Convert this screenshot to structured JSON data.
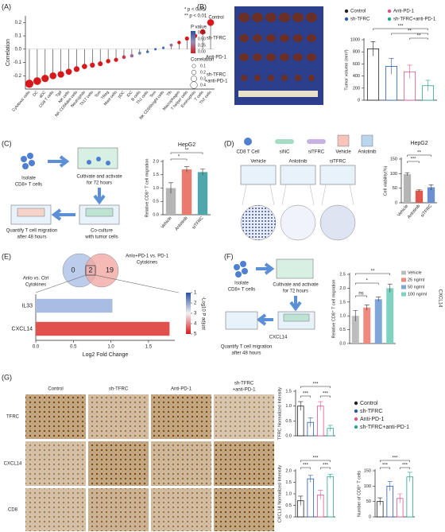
{
  "panel_labels": [
    "(A)",
    "(B)",
    "(C)",
    "(D)",
    "(E)",
    "(F)",
    "(G)"
  ],
  "chart_data": [
    {
      "type": "lollipop",
      "ylabel": "Correlation",
      "categories": [
        "Cytotoxic cells",
        "DC",
        "aDC",
        "CD8 T cells",
        "Tgd",
        "NK cells",
        "NK CD56dim cells",
        "Neutrophils",
        "Th17 cells",
        "Tcm",
        "TReg",
        "Mast cells",
        "pDC",
        "iDC",
        "B cells",
        "Th1 cells",
        "Tem",
        "NK CD56bright cells",
        "Tfh",
        "Macrophages",
        "T helper cells",
        "Eosinophils",
        "T cells",
        "Th2 cells"
      ],
      "values": [
        -0.26,
        -0.24,
        -0.22,
        -0.2,
        -0.19,
        -0.17,
        -0.15,
        -0.13,
        -0.12,
        -0.11,
        -0.09,
        -0.08,
        -0.06,
        -0.05,
        -0.03,
        -0.02,
        0.0,
        0.01,
        0.03,
        0.05,
        0.08,
        0.1,
        0.13,
        0.2
      ],
      "point_colors": [
        "#d7191c",
        "#d7191c",
        "#d7191c",
        "#d7191c",
        "#d7191c",
        "#d7191c",
        "#d7191c",
        "#d7191c",
        "#d7191c",
        "#d7191c",
        "#d7191c",
        "#d7191c",
        "#c43b55",
        "#9b6b9a",
        "#6f86b8",
        "#4e74b8",
        "#3f62a8",
        "#4e74b8",
        "#9b6b9a",
        "#d7191c",
        "#d7191c",
        "#d7191c",
        "#d7191c",
        "#d7191c"
      ],
      "ylim": [
        -0.3,
        0.25
      ],
      "yticks": [
        -0.2,
        -0.1,
        {
          "value": 0,
          "label": "0.0"
        },
        0.1,
        0.2
      ],
      "annotations": [
        "* p < 0.05",
        "** p < 0.01"
      ],
      "legend": {
        "pvalue_title": "P value",
        "pvalue_ticks": [
          "0.75",
          "0.50",
          "0.25",
          "0.00"
        ],
        "size_title": "Correlation",
        "sizes": [
          0.1,
          0.2,
          0.3,
          0.4
        ]
      }
    },
    {
      "type": "bar",
      "ylabel": "Tumor volume (mm³)",
      "categories": [
        "Control",
        "sh-TFRC",
        "Anti-PD-1",
        "sh-TFRC+anti-PD-1"
      ],
      "values": [
        850,
        560,
        470,
        240
      ],
      "errors": [
        120,
        130,
        110,
        90
      ],
      "colors": [
        "#222222",
        "#2a5caa",
        "#e0528a",
        "#2aa58a"
      ],
      "ylim": [
        0,
        1000
      ],
      "yticks": [
        0,
        200,
        400,
        600,
        800,
        1000
      ],
      "annotations": [
        "***",
        "**",
        "**"
      ]
    },
    {
      "type": "bar",
      "title": "HepG2",
      "ylabel": "Relative CD8⁺ T cell migration",
      "categories": [
        "Vehicle",
        "Anlotinib",
        "siTFRC"
      ],
      "values": [
        1.0,
        1.7,
        1.6
      ],
      "errors": [
        0.2,
        0.1,
        0.12
      ],
      "colors": [
        "#b5b5b5",
        "#ea7a6e",
        "#4fa7ab"
      ],
      "ylim": [
        0,
        2.0
      ],
      "yticks": [
        {
          "value": 0,
          "label": "0.0"
        },
        0.5,
        {
          "value": 1,
          "label": "1.0"
        },
        1.5,
        {
          "value": 2,
          "label": "2.0"
        }
      ],
      "annotations": [
        "*",
        "**"
      ]
    },
    {
      "type": "bar",
      "title": "HepG2",
      "ylabel": "Cell viability(%)",
      "categories": [
        "Vehicle",
        "Anlotinib",
        "siTFRC"
      ],
      "values": [
        98,
        42,
        53
      ],
      "errors": [
        5,
        3,
        9
      ],
      "colors": [
        "#b5b5b5",
        "#e0574c",
        "#6b8fd0"
      ],
      "ylim": [
        0,
        150
      ],
      "yticks": [
        0,
        50,
        100,
        150
      ],
      "annotations": [
        "***",
        "**"
      ]
    },
    {
      "type": "hbar",
      "categories": [
        "IL33",
        "CXCL14"
      ],
      "values": [
        1.02,
        1.78
      ],
      "colors": [
        "#a9bde3",
        "#e2504e"
      ],
      "xlabel": "Log2 Fold Change",
      "xlim": [
        0,
        1.85
      ],
      "xticks": [
        {
          "value": 0,
          "label": "0.0"
        },
        0.5,
        {
          "value": 1,
          "label": "1.0"
        },
        1.5
      ],
      "colorbar": {
        "title": "-Log10 P adjust",
        "ticks": [
          1,
          2,
          3,
          4,
          5
        ]
      }
    },
    {
      "type": "bar",
      "ylabel": "Relative CD8⁺ T cell migration",
      "side_label": "CXCL14",
      "categories": [
        "Vehicle",
        "25 ng/ml",
        "50 ng/ml",
        "100 ng/ml"
      ],
      "values": [
        1.0,
        1.3,
        1.6,
        2.0
      ],
      "errors": [
        0.2,
        0.1,
        0.08,
        0.15
      ],
      "colors": [
        "#bdbdbd",
        "#f08a7e",
        "#7ea6d8",
        "#7fd1c0"
      ],
      "ylim": [
        0,
        2.5
      ],
      "yticks": [
        {
          "value": 0,
          "label": "0.0"
        },
        0.5,
        {
          "value": 1,
          "label": "1.0"
        },
        1.5,
        {
          "value": 2,
          "label": "2.0"
        },
        2.5
      ],
      "annotations": [
        "ns",
        "*",
        "**"
      ]
    },
    {
      "type": "bar",
      "ylabel": "TFRC Normalized Intensity",
      "categories": [
        "Control",
        "sh-TFRC",
        "Anti-PD-1",
        "sh-TFRC+anti-PD-1"
      ],
      "values": [
        1.0,
        0.45,
        1.0,
        0.25
      ],
      "errors": [
        0.15,
        0.15,
        0.15,
        0.1
      ],
      "colors": [
        "#222222",
        "#2a5caa",
        "#e0528a",
        "#2aa58a"
      ],
      "ylim": [
        0,
        1.5
      ],
      "yticks": [
        {
          "value": 0,
          "label": "0.0"
        },
        0.5,
        {
          "value": 1,
          "label": "1.0"
        },
        1.5
      ],
      "annotations": [
        "***",
        "***",
        "***"
      ]
    },
    {
      "type": "bar",
      "ylabel": "CXCL14 Normalized Intensity",
      "categories": [
        "Control",
        "sh-TFRC",
        "Anti-PD-1",
        "sh-TFRC+anti-PD-1"
      ],
      "values": [
        0.7,
        1.65,
        0.95,
        1.75
      ],
      "errors": [
        0.2,
        0.15,
        0.2,
        0.1
      ],
      "colors": [
        "#222222",
        "#2a5caa",
        "#e0528a",
        "#2aa58a"
      ],
      "ylim": [
        0,
        2.0
      ],
      "yticks": [
        {
          "value": 0,
          "label": "0.0"
        },
        0.5,
        {
          "value": 1,
          "label": "1.0"
        },
        1.5,
        {
          "value": 2,
          "label": "2.0"
        }
      ],
      "annotations": [
        "***",
        "***",
        "***"
      ]
    },
    {
      "type": "bar",
      "ylabel": "Number of CD8⁺ T cells",
      "categories": [
        "Control",
        "sh-TFRC",
        "Anti-PD-1",
        "sh-TFRC+anti-PD-1"
      ],
      "values": [
        50,
        100,
        60,
        130
      ],
      "errors": [
        12,
        15,
        15,
        15
      ],
      "colors": [
        "#222222",
        "#2a5caa",
        "#e0528a",
        "#2aa58a"
      ],
      "ylim": [
        0,
        150
      ],
      "yticks": [
        0,
        50,
        100,
        150
      ],
      "annotations": [
        "***",
        "***",
        "***"
      ]
    }
  ],
  "photos_b": {
    "rows": [
      [
        "Control"
      ],
      [
        "sh-TFRC"
      ],
      [
        "Anti-PD-1"
      ],
      [
        "sh-TFRC",
        "+anti-PD-1"
      ]
    ]
  },
  "diagram_c": {
    "steps": [
      [
        "Isolate",
        "CD8+ T cells"
      ],
      [
        "Cultivate and activate",
        "for 72 hours"
      ],
      [
        "Co-culture",
        "with tumor cells"
      ],
      [
        "Quantify T cell migration",
        "after 48 hours"
      ]
    ]
  },
  "diagram_d": {
    "legend": [
      "CD8 T Cell",
      "siNC",
      "siTFRC",
      "Vehicle",
      "Anlotinib"
    ],
    "wells": [
      "Vehicle",
      "Anlotinib",
      "siTFRC"
    ]
  },
  "venn": {
    "left_title": [
      "Anlo vs. Ctrl",
      "Cytokines"
    ],
    "right_title": [
      "Anlo+PD-1 vs. PD-1",
      "Cytokines"
    ],
    "counts": [
      0,
      2,
      19
    ]
  },
  "diagram_f": {
    "steps": [
      [
        "Isolate",
        "CD8+ T cells"
      ],
      [
        "Cultivate and activate",
        "for 72 hours"
      ],
      [
        "Quantify T cell migration",
        "after 48 hours"
      ]
    ],
    "drug": "CXCL14"
  },
  "micro_g": {
    "columns": [
      [
        "Control"
      ],
      [
        "sh-TFRC"
      ],
      [
        "Anti-PD-1"
      ],
      [
        "sh-TFRC",
        "+anti-PD-1"
      ]
    ],
    "rows": [
      "TFRC",
      "CXCL14",
      "CD8"
    ]
  }
}
